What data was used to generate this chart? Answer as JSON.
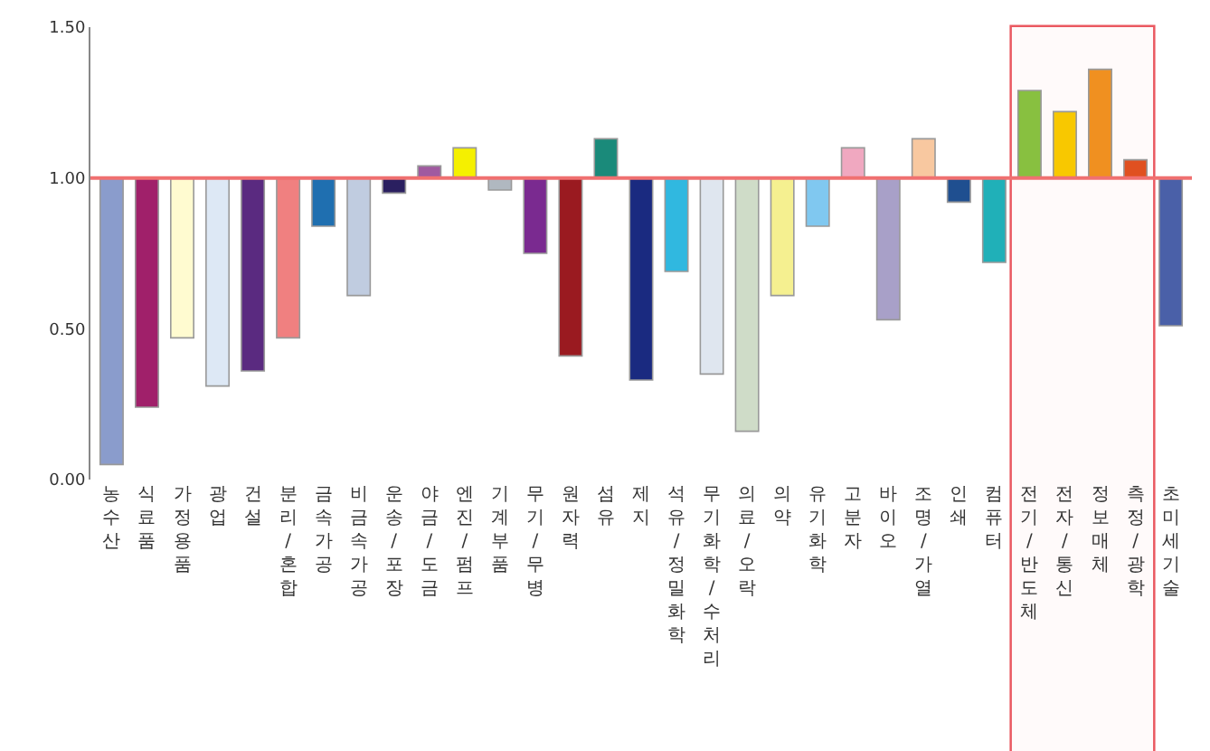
{
  "chart_data": {
    "type": "bar",
    "categories": [
      "농수산",
      "식료품",
      "가정용품",
      "광업",
      "건설",
      "분리/혼합",
      "금속가공",
      "비금속가공",
      "운송/포장",
      "야금/도금",
      "엔진/펌프",
      "기계부품",
      "무기/무병",
      "원자력",
      "섬유",
      "제지",
      "석유/정밀화학",
      "무기화학/수처리",
      "의료/오락",
      "의약",
      "유기화학",
      "고분자",
      "바이오",
      "조명/가열",
      "인쇄",
      "컴퓨터",
      "전기/반도체",
      "전자/통신",
      "정보매체",
      "측정/광학",
      "초미세기술"
    ],
    "base": [
      1,
      1,
      1,
      1,
      1,
      1,
      1,
      1,
      1,
      1,
      1,
      1,
      1,
      1,
      1,
      1,
      1,
      1,
      1,
      1,
      1,
      1,
      1,
      1,
      1,
      1,
      1,
      1,
      1,
      1,
      1
    ],
    "values": [
      -0.95,
      -0.76,
      -0.53,
      -0.69,
      -0.64,
      -0.53,
      -0.16,
      -0.39,
      -0.05,
      0.04,
      0.1,
      -0.04,
      -0.25,
      -0.59,
      0.13,
      -0.67,
      -0.31,
      -0.65,
      -0.84,
      -0.39,
      -0.16,
      0.1,
      -0.47,
      0.13,
      -0.08,
      -0.28,
      0.29,
      0.22,
      0.36,
      0.06,
      -0.49
    ],
    "colors": [
      "#8a9ccc",
      "#a0206a",
      "#fffbd0",
      "#dde8f5",
      "#5a2a80",
      "#f08080",
      "#1f6fb0",
      "#c0cce0",
      "#2a1f60",
      "#a05aa0",
      "#f5f000",
      "#b0b8c0",
      "#7a2a90",
      "#9a1a20",
      "#1a8a7a",
      "#1a2a80",
      "#30b8e0",
      "#dfe6ef",
      "#cfdcc8",
      "#f5f090",
      "#80c8f0",
      "#f0a8c0",
      "#a8a0c8",
      "#f8c8a0",
      "#1f4f90",
      "#20b0b8",
      "#88c040",
      "#f8c800",
      "#f09020",
      "#e05020",
      "#4a60a8"
    ],
    "ylim": [
      0,
      1.5
    ],
    "yticks": [
      {
        "value": 0,
        "label": "0.00"
      },
      {
        "value": 0.5,
        "label": "0.50"
      },
      {
        "value": 1,
        "label": "1.00"
      },
      {
        "value": 1.5,
        "label": "1.50"
      }
    ],
    "ref_lines": [
      {
        "axis": "y",
        "value": 1,
        "label": null,
        "color": "#f07070"
      }
    ],
    "bands": [
      {
        "axis": "x",
        "from": "전기/반도체",
        "to": "측정/광학",
        "label": null,
        "color": "#e84850"
      }
    ],
    "grid": false,
    "legend": false
  }
}
